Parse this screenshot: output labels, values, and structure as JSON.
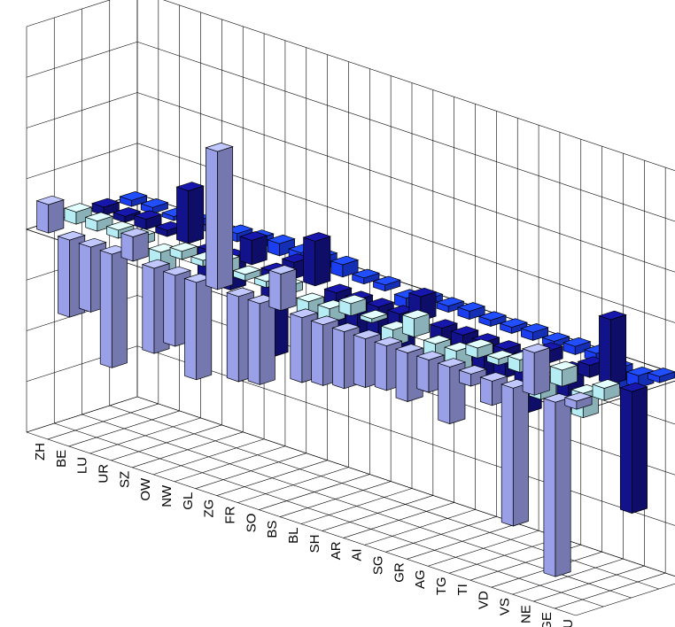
{
  "chart_data": {
    "type": "bar",
    "subtype": "3d-grouped-deviation",
    "title": "",
    "xlabel": "",
    "ylabel": "",
    "grid": true,
    "legend": "none",
    "categories": [
      "ZH",
      "BE",
      "LU",
      "UR",
      "SZ",
      "OW",
      "NW",
      "GL",
      "ZG",
      "FR",
      "SO",
      "BS",
      "BL",
      "SH",
      "AR",
      "AI",
      "SG",
      "GR",
      "AG",
      "TG",
      "TI",
      "VD",
      "VS",
      "NE",
      "GE",
      "JU"
    ],
    "colors": {
      "lavender": "#9aa0e8",
      "lightblue": "#b6ecf4",
      "navy": "#12128a",
      "blue": "#1a3ef0"
    },
    "series": [
      {
        "values": [
          1.4,
          -3.8,
          -3.2,
          -5.6,
          1.2,
          -4.2,
          -3.5,
          -4.8,
          6.8,
          -4.2,
          -4.0,
          1.8,
          -3.2,
          -3.0,
          -2.8,
          -2.4,
          -2.2,
          -2.4,
          -1.6,
          -2.8,
          -0.6,
          -1.2,
          -6.8,
          2.1,
          -8.6,
          0.4
        ],
        "color_key": "lavender"
      },
      {
        "values": [
          0.6,
          0.5,
          0.4,
          0.4,
          -1.0,
          0.4,
          0.3,
          0.6,
          0.3,
          0.3,
          0.4,
          -0.8,
          -0.7,
          0.6,
          0.2,
          -0.8,
          0.9,
          -1.6,
          -1.8,
          0.5,
          0.3,
          0.6,
          -1.0,
          0.8,
          -1.2,
          0.6
        ],
        "color_key": "lightblue"
      },
      {
        "values": [
          0.4,
          0.3,
          0.5,
          0.3,
          2.6,
          -1.8,
          -1.6,
          1.2,
          -4.2,
          0.8,
          2.2,
          -2.6,
          -2.8,
          -1.8,
          -2.1,
          1.2,
          -2.5,
          -1.4,
          -1.8,
          -1.4,
          -2.8,
          0.6,
          -2.0,
          0.6,
          3.2,
          -6.0
        ],
        "color_key": "navy"
      },
      {
        "values": [
          0.3,
          0.3,
          0.2,
          0.3,
          0.3,
          0.4,
          0.5,
          0.6,
          0.5,
          0.6,
          0.6,
          0.3,
          0.3,
          -0.5,
          0.3,
          0.3,
          0.4,
          0.3,
          0.3,
          0.4,
          0.3,
          0.4,
          0.4,
          -1.0,
          -0.6,
          0.3
        ],
        "color_key": "blue"
      }
    ],
    "ylim": [
      -10,
      10
    ]
  }
}
